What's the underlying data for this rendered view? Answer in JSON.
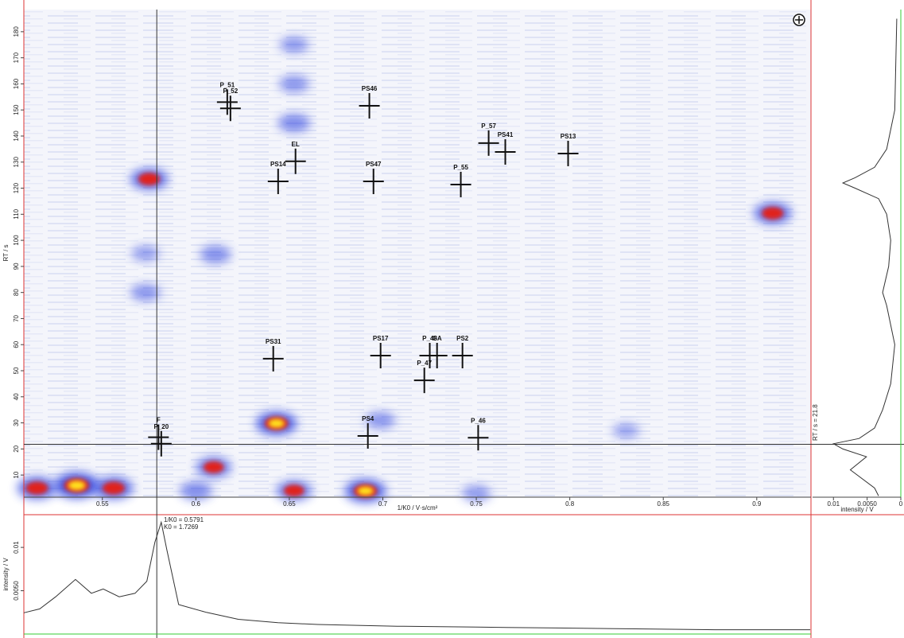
{
  "chart_data": [
    {
      "type": "heatmap",
      "xlabel": "1/K0 / V·s/cm²",
      "ylabel": "RT / s",
      "xlim": [
        0.508,
        0.929
      ],
      "ylim": [
        1.5,
        188.5
      ],
      "xticks": [
        0.55,
        0.6,
        0.65,
        0.7,
        0.75,
        0.8,
        0.85,
        0.9
      ],
      "yticks": [
        10,
        20,
        30,
        40,
        50,
        60,
        70,
        80,
        90,
        100,
        110,
        120,
        130,
        140,
        150,
        160,
        170,
        180
      ],
      "markers": [
        {
          "label": "P_51",
          "x": 0.6168,
          "y": 153
        },
        {
          "label": "P_52",
          "x": 0.6185,
          "y": 150.6
        },
        {
          "label": "PS46",
          "x": 0.6928,
          "y": 151.6
        },
        {
          "label": "EL",
          "x": 0.6533,
          "y": 130.3
        },
        {
          "label": "PS14",
          "x": 0.644,
          "y": 122.6
        },
        {
          "label": "PS47",
          "x": 0.695,
          "y": 122.6
        },
        {
          "label": "P_55",
          "x": 0.7417,
          "y": 121.4
        },
        {
          "label": "P_57",
          "x": 0.7566,
          "y": 137.3
        },
        {
          "label": "PS41",
          "x": 0.7655,
          "y": 133.9
        },
        {
          "label": "PS13",
          "x": 0.7991,
          "y": 133.3
        },
        {
          "label": "PS31",
          "x": 0.6414,
          "y": 54.6
        },
        {
          "label": "PS17",
          "x": 0.6988,
          "y": 55.8
        },
        {
          "label": "P_48",
          "x": 0.7251,
          "y": 55.8
        },
        {
          "label": "GA",
          "x": 0.729,
          "y": 55.8
        },
        {
          "label": "PS2",
          "x": 0.7426,
          "y": 55.8
        },
        {
          "label": "P_47",
          "x": 0.7222,
          "y": 46.3
        },
        {
          "label": "PS4",
          "x": 0.692,
          "y": 25.0
        },
        {
          "label": "P_46",
          "x": 0.751,
          "y": 24.3
        },
        {
          "label": "F",
          "x": 0.58,
          "y": 24.5
        },
        {
          "label": "P_20",
          "x": 0.5815,
          "y": 22.0
        }
      ],
      "spots": [
        {
          "x": 0.575,
          "y": 123.5,
          "intensity": 0.7
        },
        {
          "x": 0.9085,
          "y": 110.4,
          "intensity": 0.7
        },
        {
          "x": 0.6431,
          "y": 29.8,
          "intensity": 0.85
        },
        {
          "x": 0.6907,
          "y": 3.9,
          "intensity": 0.85
        },
        {
          "x": 0.5363,
          "y": 6,
          "intensity": 1
        },
        {
          "x": 0.515,
          "y": 5,
          "intensity": 0.75
        },
        {
          "x": 0.556,
          "y": 5,
          "intensity": 0.75
        },
        {
          "x": 0.6095,
          "y": 13,
          "intensity": 0.6
        },
        {
          "x": 0.6525,
          "y": 4,
          "intensity": 0.6
        },
        {
          "x": 0.6105,
          "y": 94.6,
          "intensity": 0.4
        },
        {
          "x": 0.6525,
          "y": 145,
          "intensity": 0.45
        },
        {
          "x": 0.6525,
          "y": 160,
          "intensity": 0.35
        },
        {
          "x": 0.6525,
          "y": 175,
          "intensity": 0.3
        },
        {
          "x": 0.573,
          "y": 80,
          "intensity": 0.35
        },
        {
          "x": 0.573,
          "y": 95,
          "intensity": 0.25
        },
        {
          "x": 0.6987,
          "y": 31,
          "intensity": 0.35
        },
        {
          "x": 0.6,
          "y": 4,
          "intensity": 0.45
        },
        {
          "x": 0.75,
          "y": 3,
          "intensity": 0.3
        },
        {
          "x": 0.83,
          "y": 27,
          "intensity": 0.2
        }
      ],
      "crosshair": {
        "x": 0.5791,
        "y": 21.8
      }
    },
    {
      "type": "line",
      "ylabel": "intensity / V",
      "annotations": [
        "1/K0 = 0.5791",
        "K0 = 1.7269"
      ],
      "xlim": [
        0.508,
        0.929
      ],
      "ylim": [
        0,
        0.0135
      ],
      "yticks": [
        0.01,
        {
          "value": 0.005,
          "label": "0.0050"
        }
      ],
      "x": [
        0.508,
        0.5165,
        0.525,
        0.5356,
        0.5441,
        0.5505,
        0.559,
        0.5675,
        0.5738,
        0.5781,
        0.5815,
        0.5845,
        0.5908,
        0.6057,
        0.6227,
        0.6439,
        0.6652,
        0.7077,
        0.7501,
        0.7926,
        0.8351,
        0.8776,
        0.9286
      ],
      "values": [
        0.00245,
        0.0029,
        0.0043,
        0.0063,
        0.0047,
        0.0052,
        0.0043,
        0.0047,
        0.0061,
        0.0106,
        0.0129,
        0.0097,
        0.0034,
        0.0025,
        0.0017,
        0.0013,
        0.0011,
        0.0009,
        0.0008,
        0.0007,
        0.0006,
        0.0005,
        0.0005
      ]
    },
    {
      "type": "profile",
      "xlabel": "intensity / V",
      "annotations": [
        "RT / s = 21.8"
      ],
      "xlim": [
        0.0131,
        0
      ],
      "ylim": [
        1.5,
        188.5
      ],
      "xticks": [
        0.01,
        {
          "value": 0.005,
          "label": "0.0050"
        },
        0
      ],
      "y": [
        185,
        150,
        135,
        128,
        124,
        122,
        120,
        116,
        110,
        100,
        90,
        80,
        75,
        60,
        45,
        35,
        28,
        24,
        22,
        20,
        17,
        12,
        5,
        2
      ],
      "values": [
        0.0006,
        0.0009,
        0.0021,
        0.0039,
        0.0068,
        0.0086,
        0.0068,
        0.0033,
        0.0021,
        0.0015,
        0.0018,
        0.0027,
        0.0021,
        0.0009,
        0.0015,
        0.0027,
        0.0039,
        0.0062,
        0.01,
        0.0086,
        0.0051,
        0.0075,
        0.0039,
        0.0033
      ]
    }
  ]
}
